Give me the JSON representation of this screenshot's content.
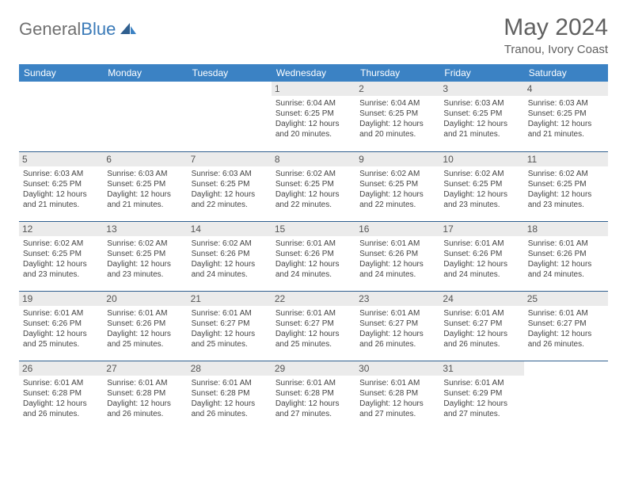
{
  "logo": {
    "word1": "General",
    "word2": "Blue"
  },
  "title": "May 2024",
  "location": "Tranou, Ivory Coast",
  "colors": {
    "header_bg": "#3b82c4",
    "header_text": "#ffffff",
    "daynum_bg": "#ebebeb",
    "border": "#2f5f8f",
    "text": "#444444",
    "title_text": "#606060"
  },
  "weekdays": [
    "Sunday",
    "Monday",
    "Tuesday",
    "Wednesday",
    "Thursday",
    "Friday",
    "Saturday"
  ],
  "weeks": [
    [
      null,
      null,
      null,
      {
        "n": "1",
        "sr": "6:04 AM",
        "ss": "6:25 PM",
        "dl": "12 hours and 20 minutes."
      },
      {
        "n": "2",
        "sr": "6:04 AM",
        "ss": "6:25 PM",
        "dl": "12 hours and 20 minutes."
      },
      {
        "n": "3",
        "sr": "6:03 AM",
        "ss": "6:25 PM",
        "dl": "12 hours and 21 minutes."
      },
      {
        "n": "4",
        "sr": "6:03 AM",
        "ss": "6:25 PM",
        "dl": "12 hours and 21 minutes."
      }
    ],
    [
      {
        "n": "5",
        "sr": "6:03 AM",
        "ss": "6:25 PM",
        "dl": "12 hours and 21 minutes."
      },
      {
        "n": "6",
        "sr": "6:03 AM",
        "ss": "6:25 PM",
        "dl": "12 hours and 21 minutes."
      },
      {
        "n": "7",
        "sr": "6:03 AM",
        "ss": "6:25 PM",
        "dl": "12 hours and 22 minutes."
      },
      {
        "n": "8",
        "sr": "6:02 AM",
        "ss": "6:25 PM",
        "dl": "12 hours and 22 minutes."
      },
      {
        "n": "9",
        "sr": "6:02 AM",
        "ss": "6:25 PM",
        "dl": "12 hours and 22 minutes."
      },
      {
        "n": "10",
        "sr": "6:02 AM",
        "ss": "6:25 PM",
        "dl": "12 hours and 23 minutes."
      },
      {
        "n": "11",
        "sr": "6:02 AM",
        "ss": "6:25 PM",
        "dl": "12 hours and 23 minutes."
      }
    ],
    [
      {
        "n": "12",
        "sr": "6:02 AM",
        "ss": "6:25 PM",
        "dl": "12 hours and 23 minutes."
      },
      {
        "n": "13",
        "sr": "6:02 AM",
        "ss": "6:25 PM",
        "dl": "12 hours and 23 minutes."
      },
      {
        "n": "14",
        "sr": "6:02 AM",
        "ss": "6:26 PM",
        "dl": "12 hours and 24 minutes."
      },
      {
        "n": "15",
        "sr": "6:01 AM",
        "ss": "6:26 PM",
        "dl": "12 hours and 24 minutes."
      },
      {
        "n": "16",
        "sr": "6:01 AM",
        "ss": "6:26 PM",
        "dl": "12 hours and 24 minutes."
      },
      {
        "n": "17",
        "sr": "6:01 AM",
        "ss": "6:26 PM",
        "dl": "12 hours and 24 minutes."
      },
      {
        "n": "18",
        "sr": "6:01 AM",
        "ss": "6:26 PM",
        "dl": "12 hours and 24 minutes."
      }
    ],
    [
      {
        "n": "19",
        "sr": "6:01 AM",
        "ss": "6:26 PM",
        "dl": "12 hours and 25 minutes."
      },
      {
        "n": "20",
        "sr": "6:01 AM",
        "ss": "6:26 PM",
        "dl": "12 hours and 25 minutes."
      },
      {
        "n": "21",
        "sr": "6:01 AM",
        "ss": "6:27 PM",
        "dl": "12 hours and 25 minutes."
      },
      {
        "n": "22",
        "sr": "6:01 AM",
        "ss": "6:27 PM",
        "dl": "12 hours and 25 minutes."
      },
      {
        "n": "23",
        "sr": "6:01 AM",
        "ss": "6:27 PM",
        "dl": "12 hours and 26 minutes."
      },
      {
        "n": "24",
        "sr": "6:01 AM",
        "ss": "6:27 PM",
        "dl": "12 hours and 26 minutes."
      },
      {
        "n": "25",
        "sr": "6:01 AM",
        "ss": "6:27 PM",
        "dl": "12 hours and 26 minutes."
      }
    ],
    [
      {
        "n": "26",
        "sr": "6:01 AM",
        "ss": "6:28 PM",
        "dl": "12 hours and 26 minutes."
      },
      {
        "n": "27",
        "sr": "6:01 AM",
        "ss": "6:28 PM",
        "dl": "12 hours and 26 minutes."
      },
      {
        "n": "28",
        "sr": "6:01 AM",
        "ss": "6:28 PM",
        "dl": "12 hours and 26 minutes."
      },
      {
        "n": "29",
        "sr": "6:01 AM",
        "ss": "6:28 PM",
        "dl": "12 hours and 27 minutes."
      },
      {
        "n": "30",
        "sr": "6:01 AM",
        "ss": "6:28 PM",
        "dl": "12 hours and 27 minutes."
      },
      {
        "n": "31",
        "sr": "6:01 AM",
        "ss": "6:29 PM",
        "dl": "12 hours and 27 minutes."
      },
      null
    ]
  ],
  "labels": {
    "sunrise": "Sunrise:",
    "sunset": "Sunset:",
    "daylight": "Daylight:"
  }
}
